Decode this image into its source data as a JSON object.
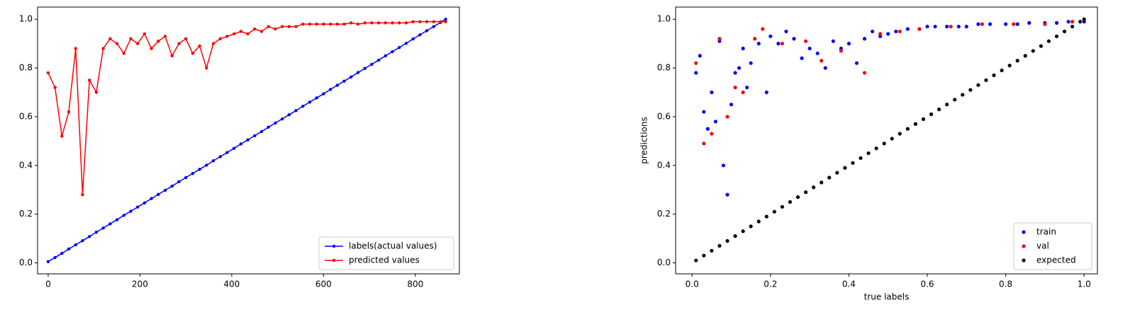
{
  "chart_data": [
    {
      "type": "line",
      "x": [
        0,
        15,
        30,
        45,
        60,
        75,
        90,
        105,
        120,
        135,
        150,
        165,
        180,
        195,
        210,
        225,
        240,
        255,
        270,
        285,
        300,
        315,
        330,
        345,
        360,
        375,
        390,
        405,
        420,
        435,
        450,
        465,
        480,
        495,
        510,
        525,
        540,
        555,
        570,
        585,
        600,
        615,
        630,
        645,
        660,
        675,
        690,
        705,
        720,
        735,
        750,
        765,
        780,
        795,
        810,
        825,
        840,
        855,
        866
      ],
      "series": [
        {
          "name": "labels(actual values)",
          "color": "#0000ff",
          "values": [
            0.005,
            0.022,
            0.039,
            0.057,
            0.074,
            0.091,
            0.108,
            0.126,
            0.143,
            0.16,
            0.177,
            0.195,
            0.212,
            0.229,
            0.246,
            0.264,
            0.281,
            0.298,
            0.315,
            0.333,
            0.35,
            0.367,
            0.384,
            0.401,
            0.419,
            0.436,
            0.453,
            0.47,
            0.488,
            0.505,
            0.522,
            0.539,
            0.557,
            0.574,
            0.591,
            0.608,
            0.625,
            0.643,
            0.66,
            0.677,
            0.694,
            0.712,
            0.729,
            0.746,
            0.763,
            0.781,
            0.798,
            0.815,
            0.832,
            0.85,
            0.867,
            0.884,
            0.901,
            0.919,
            0.936,
            0.953,
            0.97,
            0.987,
            1.0
          ]
        },
        {
          "name": "predicted values",
          "color": "#ff0000",
          "values": [
            0.78,
            0.72,
            0.52,
            0.62,
            0.88,
            0.28,
            0.75,
            0.7,
            0.88,
            0.92,
            0.9,
            0.86,
            0.92,
            0.9,
            0.94,
            0.88,
            0.91,
            0.93,
            0.85,
            0.9,
            0.92,
            0.86,
            0.89,
            0.8,
            0.9,
            0.92,
            0.93,
            0.94,
            0.95,
            0.94,
            0.96,
            0.95,
            0.97,
            0.96,
            0.97,
            0.97,
            0.97,
            0.98,
            0.98,
            0.98,
            0.98,
            0.98,
            0.98,
            0.98,
            0.985,
            0.98,
            0.985,
            0.985,
            0.985,
            0.985,
            0.985,
            0.985,
            0.985,
            0.99,
            0.99,
            0.99,
            0.99,
            0.99,
            0.99
          ]
        }
      ],
      "xlim": [
        -23,
        896
      ],
      "ylim": [
        -0.045,
        1.05
      ],
      "xticks": [
        0,
        200,
        400,
        600,
        800
      ],
      "yticks": [
        {
          "value": 0.0,
          "label": "0.0"
        },
        0.2,
        0.4,
        0.6,
        0.8,
        {
          "value": 1.0,
          "label": "1.0"
        }
      ],
      "legend": "lower right"
    },
    {
      "type": "scatter",
      "x_label": "true labels",
      "y_label": "predictions",
      "series": [
        {
          "name": "train",
          "color": "#0000ff",
          "x": [
            0.01,
            0.02,
            0.03,
            0.04,
            0.05,
            0.06,
            0.07,
            0.08,
            0.09,
            0.1,
            0.11,
            0.12,
            0.13,
            0.14,
            0.15,
            0.17,
            0.19,
            0.2,
            0.22,
            0.24,
            0.26,
            0.28,
            0.3,
            0.32,
            0.34,
            0.36,
            0.38,
            0.4,
            0.42,
            0.44,
            0.46,
            0.48,
            0.5,
            0.52,
            0.55,
            0.58,
            0.6,
            0.62,
            0.65,
            0.68,
            0.7,
            0.73,
            0.76,
            0.8,
            0.83,
            0.86,
            0.9,
            0.93,
            0.96,
            1.0
          ],
          "values": [
            0.78,
            0.85,
            0.62,
            0.55,
            0.7,
            0.58,
            0.91,
            0.4,
            0.28,
            0.65,
            0.78,
            0.8,
            0.88,
            0.72,
            0.82,
            0.9,
            0.7,
            0.93,
            0.9,
            0.95,
            0.92,
            0.84,
            0.88,
            0.86,
            0.8,
            0.91,
            0.88,
            0.9,
            0.82,
            0.92,
            0.95,
            0.93,
            0.94,
            0.95,
            0.96,
            0.96,
            0.97,
            0.97,
            0.97,
            0.97,
            0.97,
            0.98,
            0.98,
            0.98,
            0.98,
            0.985,
            0.985,
            0.985,
            0.99,
            0.99
          ]
        },
        {
          "name": "val",
          "color": "#ff0000",
          "x": [
            0.01,
            0.03,
            0.05,
            0.07,
            0.09,
            0.11,
            0.13,
            0.16,
            0.18,
            0.23,
            0.29,
            0.33,
            0.38,
            0.44,
            0.48,
            0.53,
            0.58,
            0.66,
            0.74,
            0.82,
            0.9,
            0.97
          ],
          "values": [
            0.82,
            0.49,
            0.53,
            0.92,
            0.6,
            0.72,
            0.7,
            0.92,
            0.96,
            0.9,
            0.91,
            0.83,
            0.87,
            0.78,
            0.94,
            0.95,
            0.96,
            0.97,
            0.98,
            0.98,
            0.98,
            0.99
          ]
        },
        {
          "name": "expected",
          "color": "#000000",
          "x": [
            0.01,
            0.03,
            0.05,
            0.07,
            0.09,
            0.11,
            0.13,
            0.15,
            0.17,
            0.19,
            0.21,
            0.23,
            0.25,
            0.27,
            0.29,
            0.31,
            0.33,
            0.35,
            0.37,
            0.39,
            0.41,
            0.43,
            0.45,
            0.47,
            0.49,
            0.51,
            0.53,
            0.55,
            0.57,
            0.59,
            0.61,
            0.63,
            0.65,
            0.67,
            0.69,
            0.71,
            0.73,
            0.75,
            0.77,
            0.79,
            0.81,
            0.83,
            0.85,
            0.87,
            0.89,
            0.91,
            0.93,
            0.95,
            0.97,
            0.99,
            1.0
          ],
          "values": [
            0.01,
            0.03,
            0.05,
            0.07,
            0.09,
            0.11,
            0.13,
            0.15,
            0.17,
            0.19,
            0.21,
            0.23,
            0.25,
            0.27,
            0.29,
            0.31,
            0.33,
            0.35,
            0.37,
            0.39,
            0.41,
            0.43,
            0.45,
            0.47,
            0.49,
            0.51,
            0.53,
            0.55,
            0.57,
            0.59,
            0.61,
            0.63,
            0.65,
            0.67,
            0.69,
            0.71,
            0.73,
            0.75,
            0.77,
            0.79,
            0.81,
            0.83,
            0.85,
            0.87,
            0.89,
            0.91,
            0.93,
            0.95,
            0.97,
            0.99,
            1.0
          ]
        }
      ],
      "xlim": [
        -0.042,
        1.034
      ],
      "ylim": [
        -0.045,
        1.05
      ],
      "xticks": [
        {
          "value": 0.0,
          "label": "0.0"
        },
        0.2,
        0.4,
        0.6,
        0.8,
        {
          "value": 1.0,
          "label": "1.0"
        }
      ],
      "yticks": [
        {
          "value": 0.0,
          "label": "0.0"
        },
        0.2,
        0.4,
        0.6,
        0.8,
        {
          "value": 1.0,
          "label": "1.0"
        }
      ],
      "legend": "lower right"
    }
  ]
}
